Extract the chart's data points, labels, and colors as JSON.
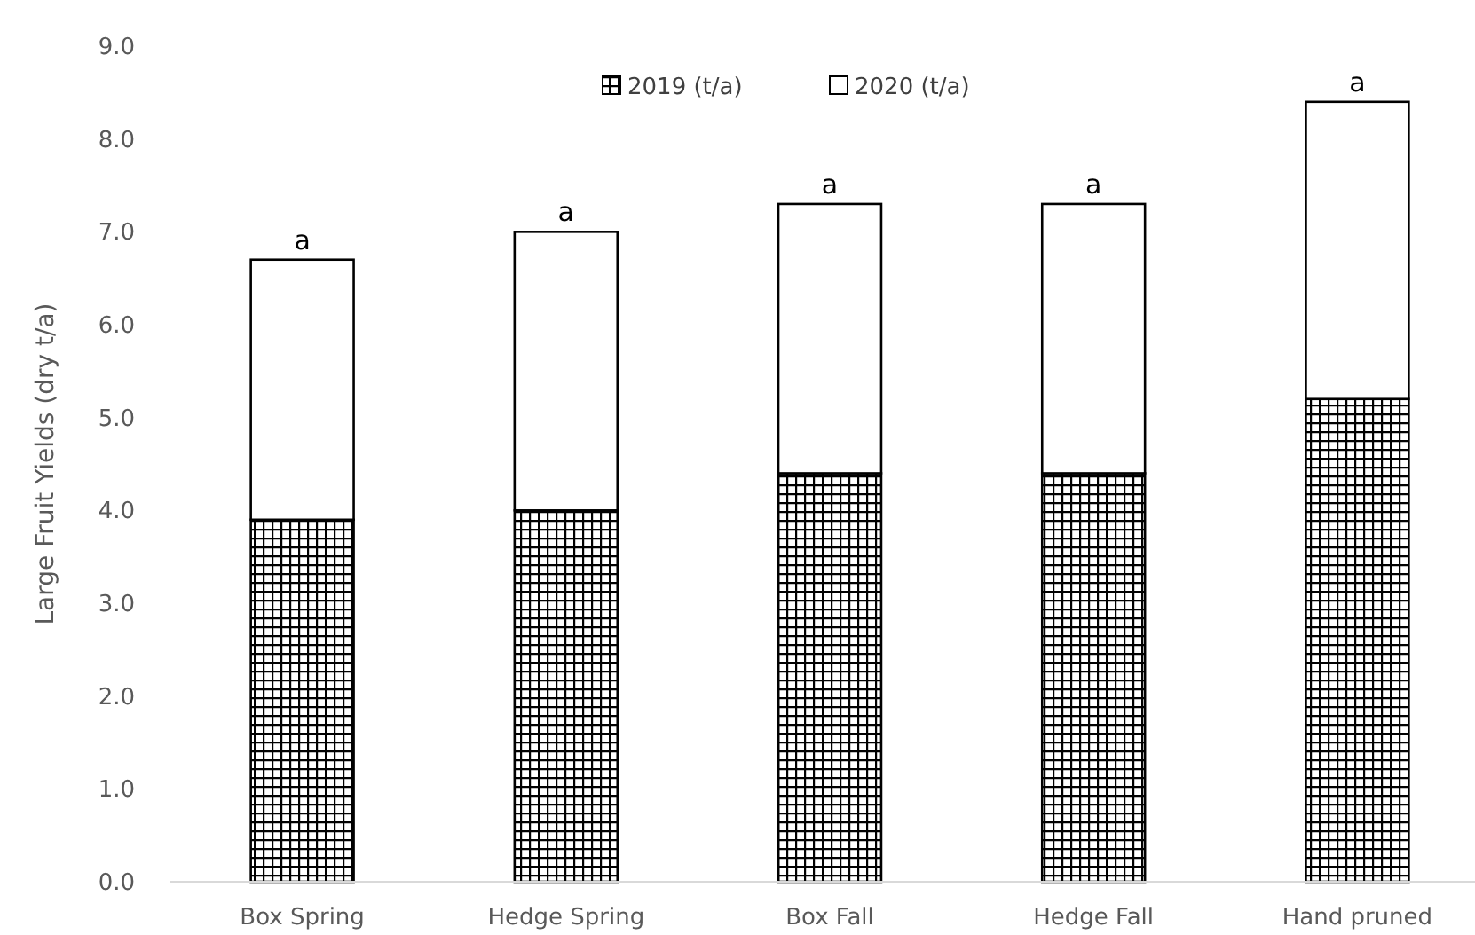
{
  "chart_data": {
    "type": "bar",
    "stacked": true,
    "ylabel": "Large Fruit Yields (dry t/a)",
    "categories": [
      "Box Spring",
      "Hedge Spring",
      "Box Fall",
      "Hedge Fall",
      "Hand pruned"
    ],
    "series": [
      {
        "name": "2019 (t/a)",
        "color": "#000000",
        "values": [
          3.9,
          4.0,
          4.4,
          4.4,
          5.2
        ]
      },
      {
        "name": "2020 (t/a)",
        "color": "#ffffff",
        "values": [
          2.8,
          3.0,
          2.9,
          2.9,
          3.2
        ]
      }
    ],
    "ylim": [
      0,
      9
    ],
    "yticks": [
      {
        "value": 0,
        "label": "0.0"
      },
      {
        "value": 1,
        "label": "1.0"
      },
      {
        "value": 2,
        "label": "2.0"
      },
      {
        "value": 3,
        "label": "3.0"
      },
      {
        "value": 4,
        "label": "4.0"
      },
      {
        "value": 5,
        "label": "5.0"
      },
      {
        "value": 6,
        "label": "6.0"
      },
      {
        "value": 7,
        "label": "7.0"
      },
      {
        "value": 8,
        "label": "8.0"
      },
      {
        "value": 9,
        "label": "9.0"
      }
    ],
    "annotations": [
      {
        "text": "a",
        "x": "Box Spring",
        "y": 6.7
      },
      {
        "text": "a",
        "x": "Hedge Spring",
        "y": 7.0
      },
      {
        "text": "a",
        "x": "Box Fall",
        "y": 7.3
      },
      {
        "text": "a",
        "x": "Hedge Fall",
        "y": 7.3
      },
      {
        "text": "a",
        "x": "Hand pruned",
        "y": 8.4
      }
    ],
    "legend": "top",
    "grid": false
  }
}
